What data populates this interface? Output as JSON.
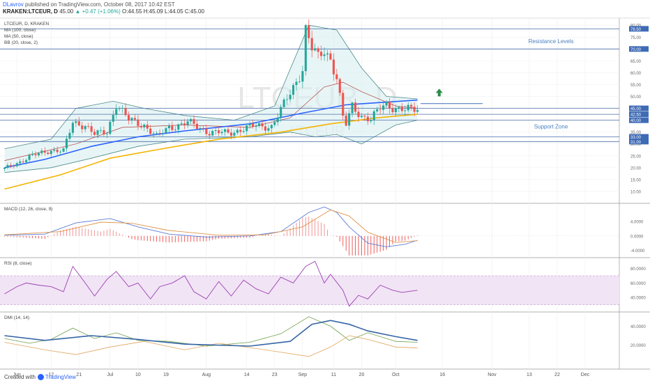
{
  "header": {
    "author": "DLavrov",
    "published_text": "published on TradingView.com, October 08, 2017 10:42 EST",
    "symbol": "KRAKEN:LTCEUR, D",
    "ohlc_text": "45.00",
    "change_text": "▲ +0.47 (+1.06%)",
    "o_text": "O:44.55",
    "h_text": "H:45.09",
    "l_text": "L:44.05",
    "c_text": "C:45.00"
  },
  "watermark": {
    "line1": "LTCEUR, D",
    "line2": "LTCEUR"
  },
  "colors": {
    "up": "#26a69a",
    "down": "#ef5350",
    "ma100": "#2962ff",
    "ma50": "#f4b400",
    "bb_line": "#4a8a8a",
    "bb_basis": "#b04040",
    "bb_fill": "#d8eef0",
    "level": "#4a6fa8",
    "macd": "#5b7bd5",
    "signal": "#e0944a",
    "rsi": "#9b3fb0",
    "rsi_fill": "#f1e4f5",
    "dmi_adx": "#3465a4",
    "dmi_plus": "#6f9e4c",
    "dmi_minus": "#e0a35a",
    "arrow": "#2e8b4a"
  },
  "footer": {
    "created_with": "Created with",
    "brand": "TradingView"
  },
  "chart_data": {
    "type": "candlestick",
    "main": {
      "legend": [
        "LTCEUR, D, KRAKEN",
        "MA (100, close)",
        "MA (50, close)",
        "BB (20, close, 2)"
      ],
      "ylim": [
        5,
        83
      ],
      "y_ticks": [
        10,
        15,
        20,
        25,
        30,
        35,
        40,
        45,
        50,
        55,
        60,
        65,
        70,
        75,
        80
      ],
      "y_tick_labels": [
        "10.00",
        "15.00",
        "20.00",
        "25.00",
        "30.00",
        "35.00",
        "40.00",
        "45.00",
        "50.00",
        "55.00",
        "60.00",
        "65.00",
        "70.00",
        "75.00",
        "80.00"
      ],
      "levels": [
        {
          "value": 78.5,
          "label": "78.50"
        },
        {
          "value": 70.0,
          "label": "70.00"
        },
        {
          "value": 45.0,
          "label": "45.00"
        },
        {
          "value": 42.5,
          "label": "42.50"
        },
        {
          "value": 40.0,
          "label": "40.00"
        },
        {
          "value": 33.0,
          "label": "33.00"
        },
        {
          "value": 31.0,
          "label": "31.00"
        }
      ],
      "annotations": [
        {
          "text": "Resistance Levels",
          "date": "2017-11-20",
          "value": 72.5
        },
        {
          "text": "Support Zone",
          "date": "2017-11-20",
          "value": 36.5
        }
      ],
      "target_line": {
        "from": "2017-10-09",
        "to": "2017-10-29",
        "value": 47.0
      },
      "arrow_up": {
        "date": "2017-10-15",
        "value": 51.5
      },
      "close_keypoints": [
        [
          "2017-05-28",
          19.5
        ],
        [
          "2017-06-05",
          24.5
        ],
        [
          "2017-06-12",
          27.5
        ],
        [
          "2017-06-16",
          27
        ],
        [
          "2017-06-19",
          39
        ],
        [
          "2017-06-23",
          38
        ],
        [
          "2017-06-26",
          34
        ],
        [
          "2017-06-30",
          35
        ],
        [
          "2017-07-03",
          47
        ],
        [
          "2017-07-07",
          40
        ],
        [
          "2017-07-12",
          38
        ],
        [
          "2017-07-16",
          33
        ],
        [
          "2017-07-20",
          37
        ],
        [
          "2017-07-26",
          39
        ],
        [
          "2017-08-02",
          35
        ],
        [
          "2017-08-08",
          34.5
        ],
        [
          "2017-08-13",
          36.5
        ],
        [
          "2017-08-17",
          37.5
        ],
        [
          "2017-08-22",
          37.5
        ],
        [
          "2017-08-25",
          44
        ],
        [
          "2017-08-29",
          54
        ],
        [
          "2017-09-01",
          62
        ],
        [
          "2017-09-02",
          78
        ],
        [
          "2017-09-04",
          70
        ],
        [
          "2017-09-06",
          66
        ],
        [
          "2017-09-08",
          70
        ],
        [
          "2017-09-10",
          66
        ],
        [
          "2017-09-12",
          58
        ],
        [
          "2017-09-14",
          41
        ],
        [
          "2017-09-15",
          38
        ],
        [
          "2017-09-17",
          46
        ],
        [
          "2017-09-20",
          42
        ],
        [
          "2017-09-23",
          40
        ],
        [
          "2017-09-26",
          45
        ],
        [
          "2017-09-28",
          47
        ],
        [
          "2017-10-01",
          45
        ],
        [
          "2017-10-04",
          44
        ],
        [
          "2017-10-08",
          45
        ]
      ],
      "ma50_keypoints": [
        [
          "2017-05-28",
          11
        ],
        [
          "2017-06-15",
          17
        ],
        [
          "2017-07-01",
          24
        ],
        [
          "2017-07-20",
          28.5
        ],
        [
          "2017-08-05",
          32
        ],
        [
          "2017-08-25",
          35
        ],
        [
          "2017-09-10",
          38.5
        ],
        [
          "2017-09-25",
          41
        ],
        [
          "2017-10-08",
          42.5
        ]
      ],
      "ma100_keypoints": [
        [
          "2017-05-28",
          20
        ],
        [
          "2017-06-10",
          23.5
        ],
        [
          "2017-06-25",
          29
        ],
        [
          "2017-07-10",
          33
        ],
        [
          "2017-07-25",
          35.5
        ],
        [
          "2017-08-15",
          38.5
        ],
        [
          "2017-09-01",
          43
        ],
        [
          "2017-09-15",
          46.5
        ],
        [
          "2017-10-08",
          48.5
        ]
      ],
      "bb_upper_keypoints": [
        [
          "2017-05-28",
          28
        ],
        [
          "2017-06-12",
          32
        ],
        [
          "2017-06-20",
          45
        ],
        [
          "2017-07-02",
          48
        ],
        [
          "2017-07-12",
          45
        ],
        [
          "2017-07-25",
          42
        ],
        [
          "2017-08-10",
          40
        ],
        [
          "2017-08-23",
          46
        ],
        [
          "2017-09-03",
          80
        ],
        [
          "2017-09-12",
          78
        ],
        [
          "2017-09-20",
          62
        ],
        [
          "2017-09-28",
          50
        ],
        [
          "2017-10-08",
          49
        ]
      ],
      "bb_basis_keypoints": [
        [
          "2017-05-28",
          23
        ],
        [
          "2017-06-20",
          30
        ],
        [
          "2017-07-05",
          37
        ],
        [
          "2017-07-25",
          38
        ],
        [
          "2017-08-15",
          37
        ],
        [
          "2017-08-28",
          41
        ],
        [
          "2017-09-08",
          54
        ],
        [
          "2017-09-14",
          56
        ],
        [
          "2017-09-20",
          52
        ],
        [
          "2017-10-01",
          46
        ],
        [
          "2017-10-08",
          45
        ]
      ],
      "bb_lower_keypoints": [
        [
          "2017-05-28",
          18
        ],
        [
          "2017-06-12",
          20
        ],
        [
          "2017-06-25",
          24
        ],
        [
          "2017-07-10",
          29
        ],
        [
          "2017-07-25",
          32
        ],
        [
          "2017-08-15",
          33
        ],
        [
          "2017-08-28",
          35
        ],
        [
          "2017-09-05",
          33
        ],
        [
          "2017-09-12",
          34
        ],
        [
          "2017-09-20",
          30
        ],
        [
          "2017-10-01",
          38
        ],
        [
          "2017-10-08",
          40
        ]
      ]
    },
    "macd": {
      "legend": "MACD (12, 26, close, 9)",
      "ylim": [
        -6,
        9
      ],
      "y_ticks": [
        4,
        0,
        -4
      ],
      "y_tick_labels": [
        "4.0000",
        "0.0000",
        "-4.0000"
      ],
      "macd_keypoints": [
        [
          "2017-05-28",
          0.2
        ],
        [
          "2017-06-10",
          0.5
        ],
        [
          "2017-06-20",
          3.6
        ],
        [
          "2017-07-01",
          4.8
        ],
        [
          "2017-07-10",
          2.5
        ],
        [
          "2017-07-20",
          0.5
        ],
        [
          "2017-08-01",
          -0.3
        ],
        [
          "2017-08-15",
          0
        ],
        [
          "2017-08-25",
          1.2
        ],
        [
          "2017-09-03",
          6.5
        ],
        [
          "2017-09-08",
          8.0
        ],
        [
          "2017-09-12",
          6.5
        ],
        [
          "2017-09-16",
          2.5
        ],
        [
          "2017-09-22",
          -2.0
        ],
        [
          "2017-09-28",
          -3.0
        ],
        [
          "2017-10-04",
          -2.3
        ],
        [
          "2017-10-08",
          -1.2
        ]
      ],
      "signal_keypoints": [
        [
          "2017-05-28",
          0.3
        ],
        [
          "2017-06-15",
          1.2
        ],
        [
          "2017-06-28",
          3.8
        ],
        [
          "2017-07-08",
          3.5
        ],
        [
          "2017-07-20",
          1.5
        ],
        [
          "2017-08-05",
          0.2
        ],
        [
          "2017-08-20",
          0.3
        ],
        [
          "2017-09-01",
          2.5
        ],
        [
          "2017-09-10",
          7.2
        ],
        [
          "2017-09-16",
          5.5
        ],
        [
          "2017-09-22",
          1.0
        ],
        [
          "2017-10-01",
          -1.8
        ],
        [
          "2017-10-08",
          -1.3
        ]
      ]
    },
    "rsi": {
      "legend": "RSI (8, close)",
      "ylim": [
        20,
        95
      ],
      "band": [
        30,
        70
      ],
      "y_ticks": [
        80,
        60,
        40
      ],
      "y_tick_labels": [
        "80.0000",
        "60.0000",
        "40.0000"
      ],
      "keypoints": [
        [
          "2017-05-28",
          45
        ],
        [
          "2017-06-01",
          55
        ],
        [
          "2017-06-04",
          60
        ],
        [
          "2017-06-08",
          57
        ],
        [
          "2017-06-12",
          55
        ],
        [
          "2017-06-16",
          48
        ],
        [
          "2017-06-19",
          83
        ],
        [
          "2017-06-23",
          60
        ],
        [
          "2017-06-26",
          42
        ],
        [
          "2017-06-30",
          65
        ],
        [
          "2017-07-03",
          76
        ],
        [
          "2017-07-07",
          55
        ],
        [
          "2017-07-10",
          60
        ],
        [
          "2017-07-14",
          38
        ],
        [
          "2017-07-17",
          55
        ],
        [
          "2017-07-21",
          60
        ],
        [
          "2017-07-25",
          70
        ],
        [
          "2017-07-28",
          48
        ],
        [
          "2017-08-01",
          38
        ],
        [
          "2017-08-05",
          62
        ],
        [
          "2017-08-09",
          42
        ],
        [
          "2017-08-13",
          64
        ],
        [
          "2017-08-17",
          52
        ],
        [
          "2017-08-21",
          45
        ],
        [
          "2017-08-25",
          68
        ],
        [
          "2017-08-29",
          60
        ],
        [
          "2017-09-02",
          83
        ],
        [
          "2017-09-05",
          90
        ],
        [
          "2017-09-08",
          60
        ],
        [
          "2017-09-10",
          72
        ],
        [
          "2017-09-14",
          50
        ],
        [
          "2017-09-16",
          28
        ],
        [
          "2017-09-19",
          43
        ],
        [
          "2017-09-22",
          38
        ],
        [
          "2017-09-26",
          57
        ],
        [
          "2017-09-30",
          50
        ],
        [
          "2017-10-03",
          47
        ],
        [
          "2017-10-08",
          50
        ]
      ]
    },
    "dmi": {
      "legend": "DMI (14, 14)",
      "ylim": [
        5,
        55
      ],
      "y_ticks": [
        40,
        20
      ],
      "y_tick_labels": [
        "40.0000",
        "20.0000"
      ],
      "adx_keypoints": [
        [
          "2017-05-28",
          30
        ],
        [
          "2017-06-10",
          25
        ],
        [
          "2017-06-25",
          30
        ],
        [
          "2017-07-10",
          26
        ],
        [
          "2017-07-25",
          21
        ],
        [
          "2017-08-15",
          19
        ],
        [
          "2017-08-28",
          24
        ],
        [
          "2017-09-04",
          42
        ],
        [
          "2017-09-10",
          46
        ],
        [
          "2017-09-16",
          42
        ],
        [
          "2017-09-22",
          35
        ],
        [
          "2017-10-01",
          29
        ],
        [
          "2017-10-08",
          25
        ]
      ],
      "plus_keypoints": [
        [
          "2017-05-28",
          27
        ],
        [
          "2017-06-05",
          22
        ],
        [
          "2017-06-12",
          26
        ],
        [
          "2017-06-19",
          38
        ],
        [
          "2017-06-26",
          27
        ],
        [
          "2017-07-03",
          33
        ],
        [
          "2017-07-10",
          25
        ],
        [
          "2017-07-20",
          24
        ],
        [
          "2017-08-01",
          19
        ],
        [
          "2017-08-15",
          23
        ],
        [
          "2017-08-25",
          32
        ],
        [
          "2017-09-03",
          50
        ],
        [
          "2017-09-10",
          40
        ],
        [
          "2017-09-16",
          25
        ],
        [
          "2017-09-22",
          33
        ],
        [
          "2017-10-01",
          24
        ],
        [
          "2017-10-08",
          23
        ]
      ],
      "minus_keypoints": [
        [
          "2017-05-28",
          23
        ],
        [
          "2017-06-10",
          15
        ],
        [
          "2017-06-20",
          10
        ],
        [
          "2017-07-01",
          18
        ],
        [
          "2017-07-12",
          24
        ],
        [
          "2017-07-25",
          15
        ],
        [
          "2017-08-05",
          22
        ],
        [
          "2017-08-20",
          15
        ],
        [
          "2017-09-03",
          8
        ],
        [
          "2017-09-10",
          18
        ],
        [
          "2017-09-16",
          30
        ],
        [
          "2017-09-22",
          26
        ],
        [
          "2017-10-01",
          18
        ],
        [
          "2017-10-08",
          17
        ]
      ]
    },
    "x_ticks": [
      {
        "label": "Jun",
        "date": "2017-06-01"
      },
      {
        "label": "12",
        "date": "2017-06-12"
      },
      {
        "label": "21",
        "date": "2017-06-21"
      },
      {
        "label": "Jul",
        "date": "2017-07-01"
      },
      {
        "label": "10",
        "date": "2017-07-10"
      },
      {
        "label": "19",
        "date": "2017-07-19"
      },
      {
        "label": "Aug",
        "date": "2017-08-01"
      },
      {
        "label": "14",
        "date": "2017-08-14"
      },
      {
        "label": "23",
        "date": "2017-08-23"
      },
      {
        "label": "Sep",
        "date": "2017-09-01"
      },
      {
        "label": "11",
        "date": "2017-09-11"
      },
      {
        "label": "20",
        "date": "2017-09-20"
      },
      {
        "label": "Oct",
        "date": "2017-10-01"
      },
      {
        "label": "16",
        "date": "2017-10-16"
      },
      {
        "label": "Nov",
        "date": "2017-11-01"
      },
      {
        "label": "13",
        "date": "2017-11-13"
      },
      {
        "label": "22",
        "date": "2017-11-22"
      },
      {
        "label": "Dec",
        "date": "2017-12-01"
      }
    ]
  }
}
